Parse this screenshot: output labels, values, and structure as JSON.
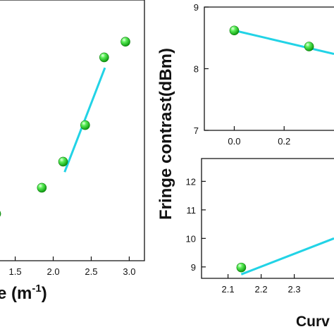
{
  "chart_data": [
    {
      "type": "scatter",
      "panel": "left",
      "xlabel": "e (m",
      "xlabel_sup": "-1",
      "xlabel_close": ")",
      "ylabel": "",
      "xlim": [
        1.3,
        3.2
      ],
      "ylim": [
        0,
        100
      ],
      "xticks": [
        "1.5",
        "2.0",
        "2.5",
        "3.0"
      ],
      "xtick_values": [
        1.5,
        2.0,
        2.5,
        3.0
      ],
      "series": [
        {
          "points": [
            {
              "x": 1.25,
              "y": 18
            },
            {
              "x": 1.85,
              "y": 28
            },
            {
              "x": 2.13,
              "y": 38
            },
            {
              "x": 2.42,
              "y": 52
            },
            {
              "x": 2.67,
              "y": 78
            },
            {
              "x": 2.95,
              "y": 84
            }
          ],
          "marker_color": "#22d422"
        }
      ],
      "fit_line": {
        "x": [
          2.15,
          2.68
        ],
        "y": [
          34,
          74
        ],
        "color": "#22d3e6"
      }
    },
    {
      "type": "scatter",
      "panel": "right-top",
      "ylabel": "Fringe contrast(dBm)",
      "xlim": [
        -0.12,
        0.4
      ],
      "ylim": [
        7,
        9
      ],
      "xticks": [
        "0.0",
        "0.2"
      ],
      "xtick_values": [
        0.0,
        0.2
      ],
      "yticks": [
        "7",
        "8",
        "9"
      ],
      "ytick_values": [
        7,
        8,
        9
      ],
      "series": [
        {
          "points": [
            {
              "x": 0.0,
              "y": 8.62
            },
            {
              "x": 0.3,
              "y": 8.36
            }
          ],
          "marker_color": "#22d422"
        }
      ],
      "fit_line": {
        "x": [
          0.0,
          0.4
        ],
        "y": [
          8.62,
          8.24
        ],
        "color": "#22d3e6"
      }
    },
    {
      "type": "scatter",
      "panel": "right-bottom",
      "xlabel": "Curv",
      "xlim": [
        2.02,
        2.42
      ],
      "ylim": [
        8.6,
        12.8
      ],
      "xticks": [
        "2.1",
        "2.2",
        "2.3"
      ],
      "xtick_values": [
        2.1,
        2.2,
        2.3
      ],
      "yticks": [
        "9",
        "10",
        "11",
        "12"
      ],
      "ytick_values": [
        9,
        10,
        11,
        12
      ],
      "series": [
        {
          "points": [
            {
              "x": 2.14,
              "y": 8.98
            }
          ],
          "marker_color": "#22d422"
        }
      ],
      "fit_line": {
        "x": [
          2.14,
          2.42
        ],
        "y": [
          8.74,
          10.0
        ],
        "color": "#22d3e6"
      }
    }
  ]
}
